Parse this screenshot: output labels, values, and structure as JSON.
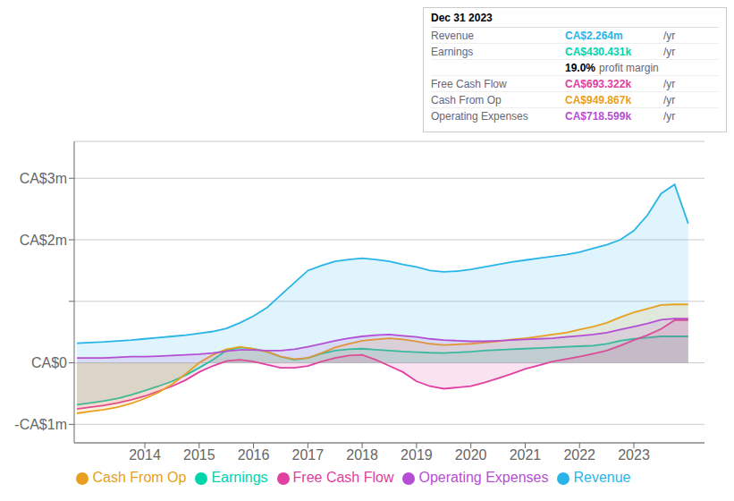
{
  "chart_data": {
    "type": "area",
    "x": [
      2012.75,
      2013.0,
      2013.25,
      2013.5,
      2013.75,
      2014.0,
      2014.25,
      2014.5,
      2014.75,
      2015.0,
      2015.25,
      2015.5,
      2015.75,
      2016.0,
      2016.25,
      2016.5,
      2016.75,
      2017.0,
      2017.25,
      2017.5,
      2017.75,
      2018.0,
      2018.25,
      2018.5,
      2018.75,
      2019.0,
      2019.25,
      2019.5,
      2019.75,
      2020.0,
      2020.25,
      2020.5,
      2020.75,
      2021.0,
      2021.25,
      2021.5,
      2021.75,
      2022.0,
      2022.25,
      2022.5,
      2022.75,
      2023.0,
      2023.25,
      2023.5,
      2023.75,
      2024.0
    ],
    "series": [
      {
        "name": "Revenue",
        "color": "#29b5e8",
        "values": [
          320000,
          330000,
          340000,
          355000,
          370000,
          390000,
          410000,
          430000,
          450000,
          480000,
          510000,
          560000,
          650000,
          760000,
          900000,
          1100000,
          1300000,
          1500000,
          1580000,
          1650000,
          1680000,
          1700000,
          1680000,
          1650000,
          1600000,
          1560000,
          1500000,
          1480000,
          1490000,
          1520000,
          1560000,
          1600000,
          1640000,
          1670000,
          1700000,
          1730000,
          1760000,
          1800000,
          1860000,
          1920000,
          2000000,
          2150000,
          2400000,
          2750000,
          2900000,
          2264000
        ]
      },
      {
        "name": "Earnings",
        "color": "#00d4aa",
        "values": [
          -680000,
          -650000,
          -620000,
          -580000,
          -520000,
          -450000,
          -380000,
          -300000,
          -200000,
          -80000,
          50000,
          200000,
          250000,
          230000,
          180000,
          100000,
          50000,
          80000,
          150000,
          200000,
          220000,
          230000,
          215000,
          200000,
          185000,
          175000,
          165000,
          160000,
          170000,
          180000,
          200000,
          210000,
          220000,
          230000,
          240000,
          250000,
          260000,
          270000,
          280000,
          310000,
          360000,
          390000,
          410000,
          430000,
          430431,
          430431
        ]
      },
      {
        "name": "Free Cash Flow",
        "color": "#e040a0",
        "values": [
          -750000,
          -720000,
          -690000,
          -650000,
          -600000,
          -540000,
          -460000,
          -380000,
          -280000,
          -150000,
          -50000,
          30000,
          50000,
          20000,
          -30000,
          -80000,
          -80000,
          -50000,
          20000,
          80000,
          120000,
          130000,
          50000,
          -50000,
          -150000,
          -300000,
          -380000,
          -420000,
          -400000,
          -380000,
          -320000,
          -250000,
          -180000,
          -100000,
          -40000,
          20000,
          60000,
          100000,
          150000,
          200000,
          280000,
          370000,
          450000,
          550000,
          693000,
          693322
        ]
      },
      {
        "name": "Cash From Op",
        "color": "#e8a020",
        "values": [
          -820000,
          -790000,
          -760000,
          -720000,
          -660000,
          -580000,
          -480000,
          -350000,
          -180000,
          0,
          130000,
          220000,
          260000,
          230000,
          180000,
          100000,
          60000,
          80000,
          160000,
          250000,
          310000,
          360000,
          380000,
          400000,
          380000,
          350000,
          310000,
          290000,
          300000,
          310000,
          330000,
          350000,
          380000,
          400000,
          430000,
          460000,
          490000,
          540000,
          590000,
          650000,
          740000,
          820000,
          880000,
          940000,
          949867,
          949867
        ]
      },
      {
        "name": "Operating Expenses",
        "color": "#b44fd4",
        "values": [
          80000,
          80000,
          80000,
          90000,
          100000,
          100000,
          110000,
          120000,
          130000,
          140000,
          160000,
          190000,
          210000,
          210000,
          200000,
          200000,
          220000,
          260000,
          310000,
          360000,
          400000,
          430000,
          450000,
          460000,
          440000,
          420000,
          390000,
          370000,
          360000,
          350000,
          350000,
          360000,
          370000,
          380000,
          390000,
          400000,
          420000,
          440000,
          460000,
          490000,
          540000,
          590000,
          640000,
          700000,
          718599,
          718599
        ]
      }
    ],
    "xlim": [
      2012.7,
      2024.3
    ],
    "xticks": [
      2014,
      2015,
      2016,
      2017,
      2018,
      2019,
      2020,
      2021,
      2022,
      2023
    ],
    "ylim": [
      -1300000,
      3600000
    ],
    "yticks": [
      {
        "value": -1000000,
        "label": "-CA$1m"
      },
      {
        "value": 0,
        "label": "CA$0"
      },
      {
        "value": 1000000,
        "label": null
      },
      {
        "value": 2000000,
        "label": "CA$2m"
      },
      {
        "value": 3000000,
        "label": "CA$3m"
      }
    ],
    "grid": true,
    "legend": "bottom",
    "annotations": [
      [
        "Dec 31 2023"
      ],
      [
        "Revenue",
        "CA$2.264m",
        "/yr"
      ],
      [
        "Earnings",
        "CA$430.431k",
        "/yr"
      ],
      [
        "19.0%",
        "profit margin"
      ],
      [
        "Free Cash Flow",
        "CA$693.322k",
        "/yr"
      ],
      [
        "Cash From Op",
        "CA$949.867k",
        "/yr"
      ],
      [
        "Operating Expenses",
        "CA$718.599k",
        "/yr"
      ]
    ]
  }
}
